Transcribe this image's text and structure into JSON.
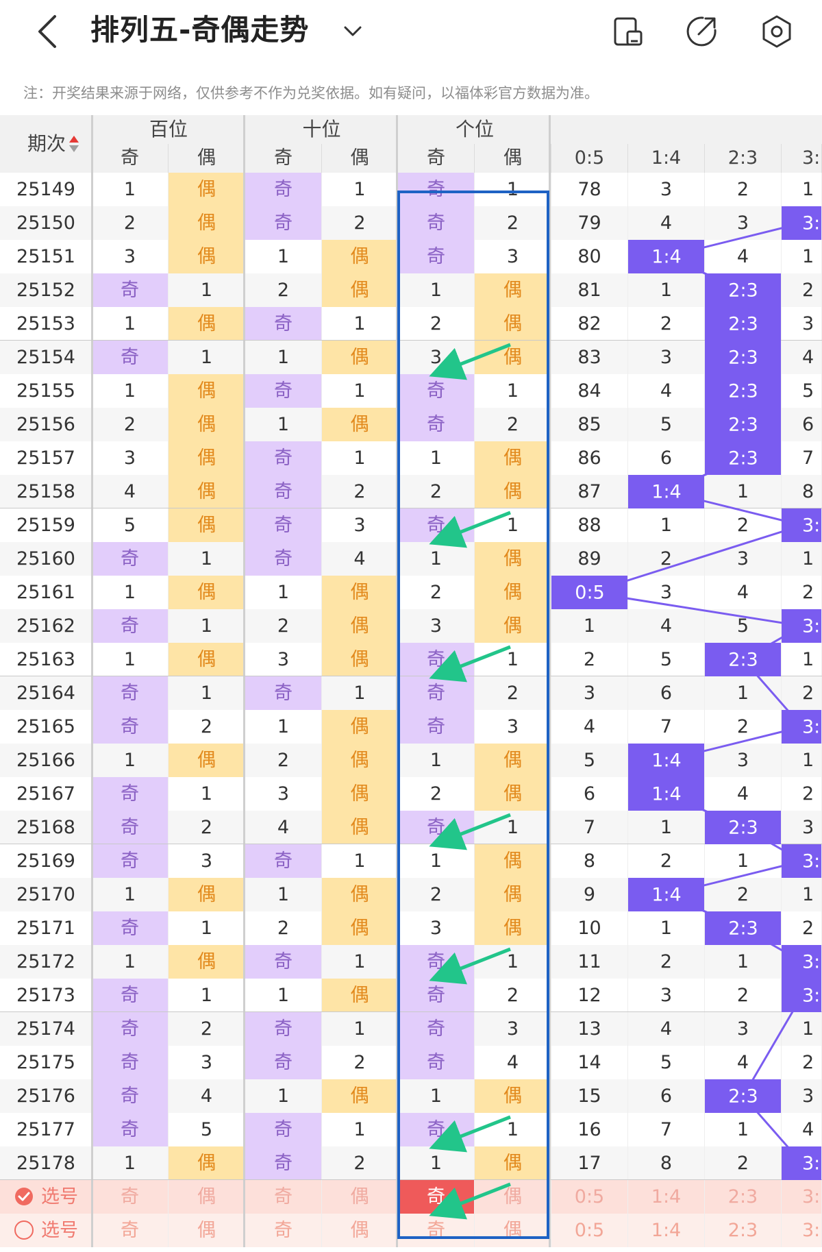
{
  "header": {
    "title": "排列五-奇偶走势"
  },
  "icons": [
    "back-icon",
    "chevron-down-icon",
    "phone-icon",
    "share-icon",
    "settings-icon",
    "sort-icon",
    "check-icon",
    "radio-icon"
  ],
  "colors": {
    "odd": "#e2cdfb",
    "even": "#fee4a6",
    "hit": "#7a5cf0",
    "box": "#1e62c4",
    "arrow": "#22c58a"
  },
  "note": "注：开奖结果来源于网络，仅供参考不作为兑奖依据。如有疑问，以福体彩官方数据为准。",
  "table": {
    "period_header": "期次",
    "groups": [
      "百位",
      "十位",
      "个位",
      "奇偶比"
    ],
    "sub_headers": [
      "奇",
      "偶",
      "奇",
      "偶",
      "奇",
      "偶",
      "0:5",
      "1:4",
      "2:3",
      "3:"
    ],
    "rows": [
      {
        "p": "25149",
        "c": [
          "1",
          "偶",
          "奇",
          "1",
          "奇",
          "1",
          "78",
          "3",
          "2",
          "1"
        ]
      },
      {
        "p": "25150",
        "c": [
          "2",
          "偶",
          "奇",
          "2",
          "奇",
          "2",
          "79",
          "4",
          "3",
          "3:"
        ]
      },
      {
        "p": "25151",
        "c": [
          "3",
          "偶",
          "1",
          "偶",
          "奇",
          "3",
          "80",
          "1:4",
          "4",
          "1"
        ]
      },
      {
        "p": "25152",
        "c": [
          "奇",
          "1",
          "2",
          "偶",
          "1",
          "偶",
          "81",
          "1",
          "2:3",
          "2"
        ]
      },
      {
        "p": "25153",
        "c": [
          "1",
          "偶",
          "奇",
          "1",
          "2",
          "偶",
          "82",
          "2",
          "2:3",
          "3"
        ]
      },
      {
        "p": "25154",
        "c": [
          "奇",
          "1",
          "1",
          "偶",
          "3",
          "偶",
          "83",
          "3",
          "2:3",
          "4"
        ]
      },
      {
        "p": "25155",
        "c": [
          "1",
          "偶",
          "奇",
          "1",
          "奇",
          "1",
          "84",
          "4",
          "2:3",
          "5"
        ]
      },
      {
        "p": "25156",
        "c": [
          "2",
          "偶",
          "1",
          "偶",
          "奇",
          "2",
          "85",
          "5",
          "2:3",
          "6"
        ]
      },
      {
        "p": "25157",
        "c": [
          "3",
          "偶",
          "奇",
          "1",
          "1",
          "偶",
          "86",
          "6",
          "2:3",
          "7"
        ]
      },
      {
        "p": "25158",
        "c": [
          "4",
          "偶",
          "奇",
          "2",
          "2",
          "偶",
          "87",
          "1:4",
          "1",
          "8"
        ]
      },
      {
        "p": "25159",
        "c": [
          "5",
          "偶",
          "奇",
          "3",
          "奇",
          "1",
          "88",
          "1",
          "2",
          "3:"
        ]
      },
      {
        "p": "25160",
        "c": [
          "奇",
          "1",
          "奇",
          "4",
          "1",
          "偶",
          "89",
          "2",
          "3",
          "1"
        ]
      },
      {
        "p": "25161",
        "c": [
          "1",
          "偶",
          "1",
          "偶",
          "2",
          "偶",
          "0:5",
          "3",
          "4",
          "2"
        ]
      },
      {
        "p": "25162",
        "c": [
          "奇",
          "1",
          "2",
          "偶",
          "3",
          "偶",
          "1",
          "4",
          "5",
          "3:"
        ]
      },
      {
        "p": "25163",
        "c": [
          "1",
          "偶",
          "3",
          "偶",
          "奇",
          "1",
          "2",
          "5",
          "2:3",
          "1"
        ]
      },
      {
        "p": "25164",
        "c": [
          "奇",
          "1",
          "奇",
          "1",
          "奇",
          "2",
          "3",
          "6",
          "1",
          "2"
        ]
      },
      {
        "p": "25165",
        "c": [
          "奇",
          "2",
          "1",
          "偶",
          "奇",
          "3",
          "4",
          "7",
          "2",
          "3:"
        ]
      },
      {
        "p": "25166",
        "c": [
          "1",
          "偶",
          "2",
          "偶",
          "1",
          "偶",
          "5",
          "1:4",
          "3",
          "1"
        ]
      },
      {
        "p": "25167",
        "c": [
          "奇",
          "1",
          "3",
          "偶",
          "2",
          "偶",
          "6",
          "1:4",
          "4",
          "2"
        ]
      },
      {
        "p": "25168",
        "c": [
          "奇",
          "2",
          "4",
          "偶",
          "奇",
          "1",
          "7",
          "1",
          "2:3",
          "3"
        ]
      },
      {
        "p": "25169",
        "c": [
          "奇",
          "3",
          "奇",
          "1",
          "1",
          "偶",
          "8",
          "2",
          "1",
          "3:"
        ]
      },
      {
        "p": "25170",
        "c": [
          "1",
          "偶",
          "1",
          "偶",
          "2",
          "偶",
          "9",
          "1:4",
          "2",
          "1"
        ]
      },
      {
        "p": "25171",
        "c": [
          "奇",
          "1",
          "2",
          "偶",
          "3",
          "偶",
          "10",
          "1",
          "2:3",
          "2"
        ]
      },
      {
        "p": "25172",
        "c": [
          "1",
          "偶",
          "奇",
          "1",
          "奇",
          "1",
          "11",
          "2",
          "1",
          "3:"
        ]
      },
      {
        "p": "25173",
        "c": [
          "奇",
          "1",
          "1",
          "偶",
          "奇",
          "2",
          "12",
          "3",
          "2",
          "3:"
        ]
      },
      {
        "p": "25174",
        "c": [
          "奇",
          "2",
          "奇",
          "1",
          "奇",
          "3",
          "13",
          "4",
          "3",
          "1"
        ]
      },
      {
        "p": "25175",
        "c": [
          "奇",
          "3",
          "奇",
          "2",
          "奇",
          "4",
          "14",
          "5",
          "4",
          "2"
        ]
      },
      {
        "p": "25176",
        "c": [
          "奇",
          "4",
          "1",
          "偶",
          "1",
          "偶",
          "15",
          "6",
          "2:3",
          "3"
        ]
      },
      {
        "p": "25177",
        "c": [
          "奇",
          "5",
          "奇",
          "1",
          "奇",
          "1",
          "16",
          "7",
          "1",
          "4"
        ]
      },
      {
        "p": "25178",
        "c": [
          "1",
          "偶",
          "奇",
          "2",
          "1",
          "偶",
          "17",
          "8",
          "2",
          "3:"
        ]
      }
    ],
    "select_rows": [
      {
        "label": "选号",
        "c": [
          "奇",
          "偶",
          "奇",
          "偶",
          "奇",
          "偶",
          "0:5",
          "1:4",
          "2:3",
          "3:"
        ]
      },
      {
        "label": "选号",
        "c": [
          "奇",
          "偶",
          "奇",
          "偶",
          "奇",
          "偶",
          "0:5",
          "1:4",
          "2:3",
          "3:"
        ]
      }
    ]
  }
}
